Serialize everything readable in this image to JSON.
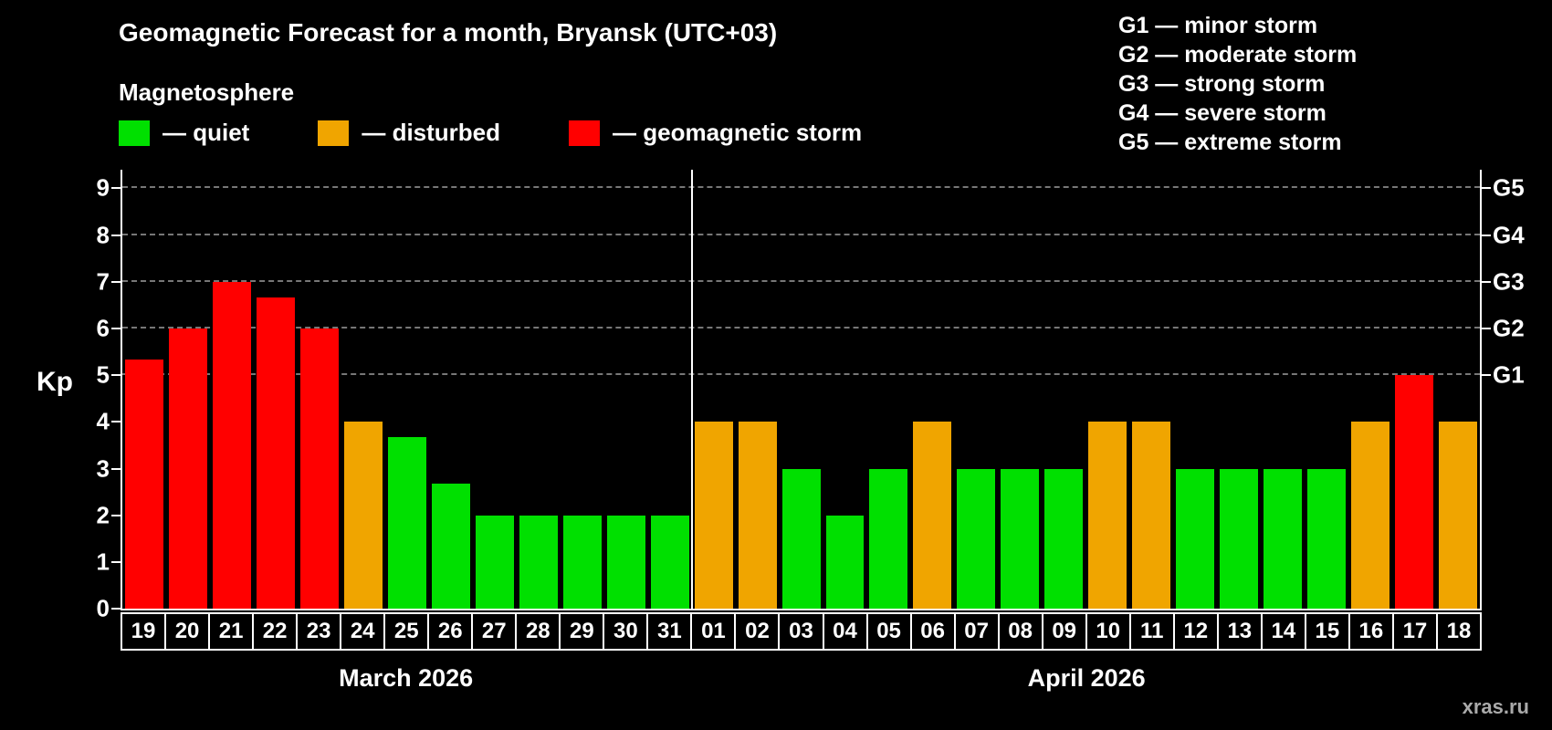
{
  "title": "Geomagnetic Forecast for a month, Bryansk (UTC+03)",
  "subtitle": "Magnetosphere",
  "legend": {
    "quiet": "— quiet",
    "disturbed": "— disturbed",
    "storm": "— geomagnetic storm"
  },
  "g_legend": [
    "G1 — minor storm",
    "G2 — moderate storm",
    "G3 — strong storm",
    "G4 — severe storm",
    "G5 — extreme storm"
  ],
  "watermark": "xras.ru",
  "colors": {
    "quiet": "#00e000",
    "disturbed": "#f0a500",
    "storm": "#ff0000",
    "grid": "#777777",
    "axis": "#ffffff"
  },
  "chart_data": {
    "type": "bar",
    "title": "Geomagnetic Forecast for a month, Bryansk (UTC+03)",
    "ylabel": "Kp",
    "ylim": [
      0,
      9.4
    ],
    "yticks": [
      0,
      1,
      2,
      3,
      4,
      5,
      6,
      7,
      8,
      9
    ],
    "right_axis_ticks": [
      {
        "label": "G1",
        "value": 5
      },
      {
        "label": "G2",
        "value": 6
      },
      {
        "label": "G3",
        "value": 7
      },
      {
        "label": "G4",
        "value": 8
      },
      {
        "label": "G5",
        "value": 9
      }
    ],
    "gridlines": [
      5,
      6,
      7,
      8,
      9
    ],
    "legend_position": "top-left",
    "grid": true,
    "months": [
      {
        "label": "March 2026",
        "days": [
          {
            "day": "19",
            "kp": 5.33,
            "level": "storm"
          },
          {
            "day": "20",
            "kp": 6,
            "level": "storm"
          },
          {
            "day": "21",
            "kp": 7,
            "level": "storm"
          },
          {
            "day": "22",
            "kp": 6.67,
            "level": "storm"
          },
          {
            "day": "23",
            "kp": 6,
            "level": "storm"
          },
          {
            "day": "24",
            "kp": 4,
            "level": "disturbed"
          },
          {
            "day": "25",
            "kp": 3.67,
            "level": "quiet"
          },
          {
            "day": "26",
            "kp": 2.67,
            "level": "quiet"
          },
          {
            "day": "27",
            "kp": 2,
            "level": "quiet"
          },
          {
            "day": "28",
            "kp": 2,
            "level": "quiet"
          },
          {
            "day": "29",
            "kp": 2,
            "level": "quiet"
          },
          {
            "day": "30",
            "kp": 2,
            "level": "quiet"
          },
          {
            "day": "31",
            "kp": 2,
            "level": "quiet"
          }
        ]
      },
      {
        "label": "April 2026",
        "days": [
          {
            "day": "01",
            "kp": 4,
            "level": "disturbed"
          },
          {
            "day": "02",
            "kp": 4,
            "level": "disturbed"
          },
          {
            "day": "03",
            "kp": 3,
            "level": "quiet"
          },
          {
            "day": "04",
            "kp": 2,
            "level": "quiet"
          },
          {
            "day": "05",
            "kp": 3,
            "level": "quiet"
          },
          {
            "day": "06",
            "kp": 4,
            "level": "disturbed"
          },
          {
            "day": "07",
            "kp": 3,
            "level": "quiet"
          },
          {
            "day": "08",
            "kp": 3,
            "level": "quiet"
          },
          {
            "day": "09",
            "kp": 3,
            "level": "quiet"
          },
          {
            "day": "10",
            "kp": 4,
            "level": "disturbed"
          },
          {
            "day": "11",
            "kp": 4,
            "level": "disturbed"
          },
          {
            "day": "12",
            "kp": 3,
            "level": "quiet"
          },
          {
            "day": "13",
            "kp": 3,
            "level": "quiet"
          },
          {
            "day": "14",
            "kp": 3,
            "level": "quiet"
          },
          {
            "day": "15",
            "kp": 3,
            "level": "quiet"
          },
          {
            "day": "16",
            "kp": 4,
            "level": "disturbed"
          },
          {
            "day": "17",
            "kp": 5,
            "level": "storm"
          },
          {
            "day": "18",
            "kp": 4,
            "level": "disturbed"
          }
        ]
      }
    ]
  }
}
